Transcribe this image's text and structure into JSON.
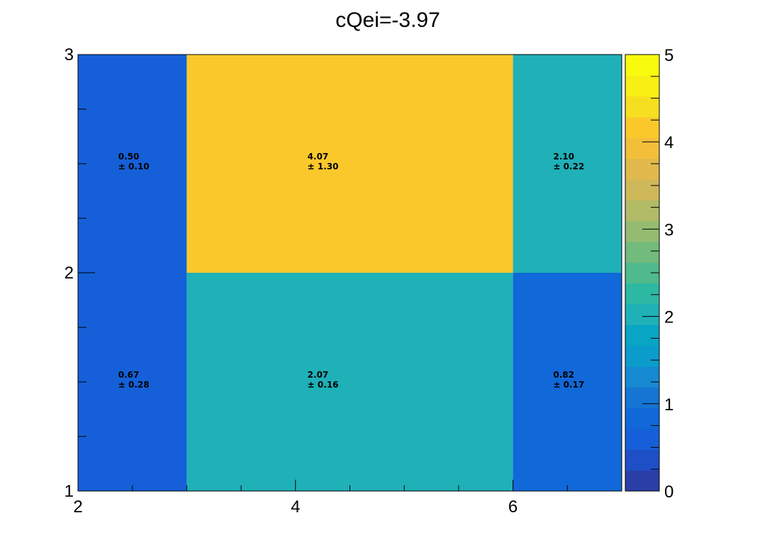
{
  "chart_data": {
    "type": "heatmap",
    "title": "cQei=-3.97",
    "xlabel": "",
    "ylabel": "",
    "x_edges": [
      2,
      3,
      6,
      7
    ],
    "y_edges": [
      1,
      2,
      3
    ],
    "xlim": [
      2,
      7
    ],
    "ylim": [
      1,
      3
    ],
    "x_ticks": [
      "2",
      "4",
      "6"
    ],
    "y_ticks": [
      "1",
      "2",
      "3"
    ],
    "zlim": [
      0,
      5
    ],
    "z_ticks": [
      "0",
      "1",
      "2",
      "3",
      "4",
      "5"
    ],
    "cells": [
      {
        "x": [
          2,
          3
        ],
        "y": [
          2,
          3
        ],
        "value": 0.5,
        "value_label": "0.50",
        "error_label": "± 0.10"
      },
      {
        "x": [
          3,
          6
        ],
        "y": [
          2,
          3
        ],
        "value": 4.07,
        "value_label": "4.07",
        "error_label": "± 1.30"
      },
      {
        "x": [
          6,
          7
        ],
        "y": [
          2,
          3
        ],
        "value": 2.1,
        "value_label": "2.10",
        "error_label": "± 0.22"
      },
      {
        "x": [
          2,
          3
        ],
        "y": [
          1,
          2
        ],
        "value": 0.67,
        "value_label": "0.67",
        "error_label": "± 0.28"
      },
      {
        "x": [
          3,
          6
        ],
        "y": [
          1,
          2
        ],
        "value": 2.07,
        "value_label": "2.07",
        "error_label": "± 0.16"
      },
      {
        "x": [
          6,
          7
        ],
        "y": [
          1,
          2
        ],
        "value": 0.82,
        "value_label": "0.82",
        "error_label": "± 0.17"
      }
    ],
    "palette": [
      "#2b3ea8",
      "#1f4fc6",
      "#1560d8",
      "#1168d8",
      "#1675d2",
      "#168ad0",
      "#0b9ccb",
      "#08a5c4",
      "#1fb0b8",
      "#2db8a4",
      "#4fba8c",
      "#72bb7c",
      "#94bc70",
      "#b2bb66",
      "#cfb85a",
      "#e1b94c",
      "#f3bf3b",
      "#fbc82c",
      "#f6df20",
      "#f8ef14",
      "#f9fb0e"
    ]
  }
}
